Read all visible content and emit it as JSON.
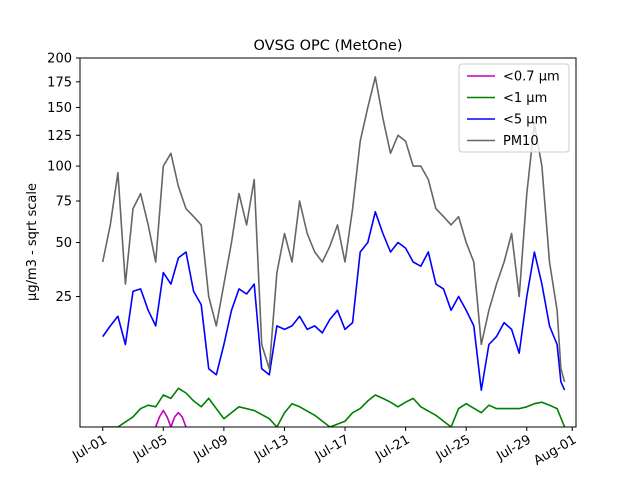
{
  "chart_data": {
    "type": "line",
    "title": "OVSG OPC (MetOne)",
    "xlabel": "",
    "ylabel": "µg/m3 - sqrt scale",
    "y_scale": "sqrt",
    "xlim": [
      "2023-06-29T12:00",
      "2023-08-01T06:00"
    ],
    "ylim": [
      0,
      200
    ],
    "yticks": [
      25,
      50,
      75,
      100,
      125,
      150,
      175,
      200
    ],
    "xticks": [
      {
        "date": "2023-07-01",
        "label": "Jul-01"
      },
      {
        "date": "2023-07-05",
        "label": "Jul-05"
      },
      {
        "date": "2023-07-09",
        "label": "Jul-09"
      },
      {
        "date": "2023-07-13",
        "label": "Jul-13"
      },
      {
        "date": "2023-07-17",
        "label": "Jul-17"
      },
      {
        "date": "2023-07-21",
        "label": "Jul-21"
      },
      {
        "date": "2023-07-25",
        "label": "Jul-25"
      },
      {
        "date": "2023-07-29",
        "label": "Jul-29"
      },
      {
        "date": "2023-08-01",
        "label": "Aug-01"
      }
    ],
    "legend_position": "top-right",
    "grid": false,
    "series": [
      {
        "name": "<0.7 µm",
        "color": "#bf00bf",
        "x": [
          "2023-07-04T12:00",
          "2023-07-04T18:00",
          "2023-07-05T00:00",
          "2023-07-05T06:00",
          "2023-07-05T12:00",
          "2023-07-05T18:00",
          "2023-07-06T00:00",
          "2023-07-06T06:00",
          "2023-07-06T12:00"
        ],
        "y": [
          0.0,
          0.15,
          0.4,
          0.15,
          0.0,
          0.15,
          0.3,
          0.15,
          0.0
        ]
      },
      {
        "name": "<1 µm",
        "color": "#008000",
        "x": [
          "2023-07-01T00:00",
          "2023-07-02T00:00",
          "2023-07-03T00:00",
          "2023-07-03T12:00",
          "2023-07-04T00:00",
          "2023-07-04T12:00",
          "2023-07-05T00:00",
          "2023-07-05T12:00",
          "2023-07-06T00:00",
          "2023-07-06T12:00",
          "2023-07-07T00:00",
          "2023-07-07T12:00",
          "2023-07-08T00:00",
          "2023-07-08T12:00",
          "2023-07-09T00:00",
          "2023-07-10T00:00",
          "2023-07-11T00:00",
          "2023-07-12T00:00",
          "2023-07-12T12:00",
          "2023-07-13T00:00",
          "2023-07-13T12:00",
          "2023-07-14T00:00",
          "2023-07-15T00:00",
          "2023-07-16T00:00",
          "2023-07-17T00:00",
          "2023-07-17T12:00",
          "2023-07-18T00:00",
          "2023-07-18T12:00",
          "2023-07-19T00:00",
          "2023-07-19T12:00",
          "2023-07-20T00:00",
          "2023-07-20T12:00",
          "2023-07-21T00:00",
          "2023-07-21T12:00",
          "2023-07-22T00:00",
          "2023-07-23T00:00",
          "2023-07-24T00:00",
          "2023-07-24T12:00",
          "2023-07-25T00:00",
          "2023-07-26T00:00",
          "2023-07-26T12:00",
          "2023-07-27T00:00",
          "2023-07-28T00:00",
          "2023-07-28T12:00",
          "2023-07-29T00:00",
          "2023-07-29T12:00",
          "2023-07-30T00:00",
          "2023-07-30T12:00",
          "2023-07-31T00:00",
          "2023-07-31T12:00"
        ],
        "y": [
          0.0,
          0.0,
          0.15,
          0.5,
          0.7,
          0.6,
          1.5,
          1.2,
          2.2,
          1.7,
          1.0,
          0.6,
          1.2,
          0.5,
          0.1,
          0.6,
          0.4,
          0.1,
          0.0,
          0.3,
          0.8,
          0.6,
          0.2,
          0.0,
          0.05,
          0.3,
          0.5,
          1.0,
          1.5,
          1.2,
          0.9,
          0.6,
          0.9,
          1.2,
          0.6,
          0.2,
          0.0,
          0.5,
          0.8,
          0.3,
          0.7,
          0.5,
          0.5,
          0.5,
          0.6,
          0.8,
          0.9,
          0.7,
          0.5,
          0.0
        ]
      },
      {
        "name": "<5 µm",
        "color": "#0000ff",
        "x": [
          "2023-07-01T00:00",
          "2023-07-01T12:00",
          "2023-07-02T00:00",
          "2023-07-02T12:00",
          "2023-07-03T00:00",
          "2023-07-03T12:00",
          "2023-07-04T00:00",
          "2023-07-04T12:00",
          "2023-07-05T00:00",
          "2023-07-05T12:00",
          "2023-07-06T00:00",
          "2023-07-06T12:00",
          "2023-07-07T00:00",
          "2023-07-07T12:00",
          "2023-07-08T00:00",
          "2023-07-08T12:00",
          "2023-07-09T00:00",
          "2023-07-09T12:00",
          "2023-07-10T00:00",
          "2023-07-10T12:00",
          "2023-07-11T00:00",
          "2023-07-11T12:00",
          "2023-07-12T00:00",
          "2023-07-12T12:00",
          "2023-07-13T00:00",
          "2023-07-13T12:00",
          "2023-07-14T00:00",
          "2023-07-14T12:00",
          "2023-07-15T00:00",
          "2023-07-15T12:00",
          "2023-07-16T00:00",
          "2023-07-16T12:00",
          "2023-07-17T00:00",
          "2023-07-17T12:00",
          "2023-07-18T00:00",
          "2023-07-18T12:00",
          "2023-07-19T00:00",
          "2023-07-19T12:00",
          "2023-07-20T00:00",
          "2023-07-20T12:00",
          "2023-07-21T00:00",
          "2023-07-21T12:00",
          "2023-07-22T00:00",
          "2023-07-22T12:00",
          "2023-07-23T00:00",
          "2023-07-23T12:00",
          "2023-07-24T00:00",
          "2023-07-24T12:00",
          "2023-07-25T00:00",
          "2023-07-25T12:00",
          "2023-07-26T00:00",
          "2023-07-26T12:00",
          "2023-07-27T00:00",
          "2023-07-27T12:00",
          "2023-07-28T00:00",
          "2023-07-28T12:00",
          "2023-07-29T00:00",
          "2023-07-29T12:00",
          "2023-07-30T00:00",
          "2023-07-30T12:00",
          "2023-07-31T00:00",
          "2023-07-31T06:00",
          "2023-07-31T12:00"
        ],
        "y": [
          12,
          15,
          18,
          10,
          27,
          28,
          20,
          15,
          35,
          30,
          42,
          45,
          27,
          22,
          5,
          4,
          10,
          20,
          28,
          26,
          30,
          5,
          4,
          15,
          14,
          15,
          18,
          14,
          15,
          13,
          17,
          20,
          14,
          16,
          45,
          50,
          68,
          55,
          45,
          50,
          47,
          40,
          38,
          45,
          30,
          28,
          20,
          25,
          20,
          15,
          2,
          10,
          12,
          16,
          14,
          8,
          25,
          45,
          30,
          15,
          10,
          3,
          2
        ]
      },
      {
        "name": "PM10",
        "color": "#666666",
        "x": [
          "2023-07-01T00:00",
          "2023-07-01T12:00",
          "2023-07-02T00:00",
          "2023-07-02T12:00",
          "2023-07-03T00:00",
          "2023-07-03T12:00",
          "2023-07-04T00:00",
          "2023-07-04T12:00",
          "2023-07-05T00:00",
          "2023-07-05T12:00",
          "2023-07-06T00:00",
          "2023-07-06T12:00",
          "2023-07-07T00:00",
          "2023-07-07T12:00",
          "2023-07-08T00:00",
          "2023-07-08T12:00",
          "2023-07-09T00:00",
          "2023-07-09T12:00",
          "2023-07-10T00:00",
          "2023-07-10T12:00",
          "2023-07-11T00:00",
          "2023-07-11T12:00",
          "2023-07-12T00:00",
          "2023-07-12T12:00",
          "2023-07-13T00:00",
          "2023-07-13T12:00",
          "2023-07-14T00:00",
          "2023-07-14T12:00",
          "2023-07-15T00:00",
          "2023-07-15T12:00",
          "2023-07-16T00:00",
          "2023-07-16T12:00",
          "2023-07-17T00:00",
          "2023-07-17T12:00",
          "2023-07-18T00:00",
          "2023-07-18T12:00",
          "2023-07-19T00:00",
          "2023-07-19T12:00",
          "2023-07-20T00:00",
          "2023-07-20T12:00",
          "2023-07-21T00:00",
          "2023-07-21T12:00",
          "2023-07-22T00:00",
          "2023-07-22T12:00",
          "2023-07-23T00:00",
          "2023-07-23T12:00",
          "2023-07-24T00:00",
          "2023-07-24T12:00",
          "2023-07-25T00:00",
          "2023-07-25T12:00",
          "2023-07-26T00:00",
          "2023-07-26T12:00",
          "2023-07-27T00:00",
          "2023-07-27T12:00",
          "2023-07-28T00:00",
          "2023-07-28T12:00",
          "2023-07-29T00:00",
          "2023-07-29T12:00",
          "2023-07-30T00:00",
          "2023-07-30T12:00",
          "2023-07-31T00:00",
          "2023-07-31T06:00",
          "2023-07-31T12:00"
        ],
        "y": [
          40,
          60,
          95,
          30,
          70,
          80,
          60,
          40,
          100,
          110,
          85,
          70,
          65,
          60,
          25,
          15,
          30,
          50,
          80,
          60,
          90,
          10,
          5,
          35,
          55,
          40,
          75,
          55,
          45,
          40,
          48,
          60,
          40,
          70,
          120,
          150,
          180,
          140,
          110,
          125,
          120,
          100,
          100,
          90,
          70,
          65,
          60,
          65,
          50,
          40,
          10,
          20,
          30,
          40,
          55,
          25,
          80,
          135,
          100,
          40,
          20,
          5,
          3
        ]
      }
    ]
  }
}
